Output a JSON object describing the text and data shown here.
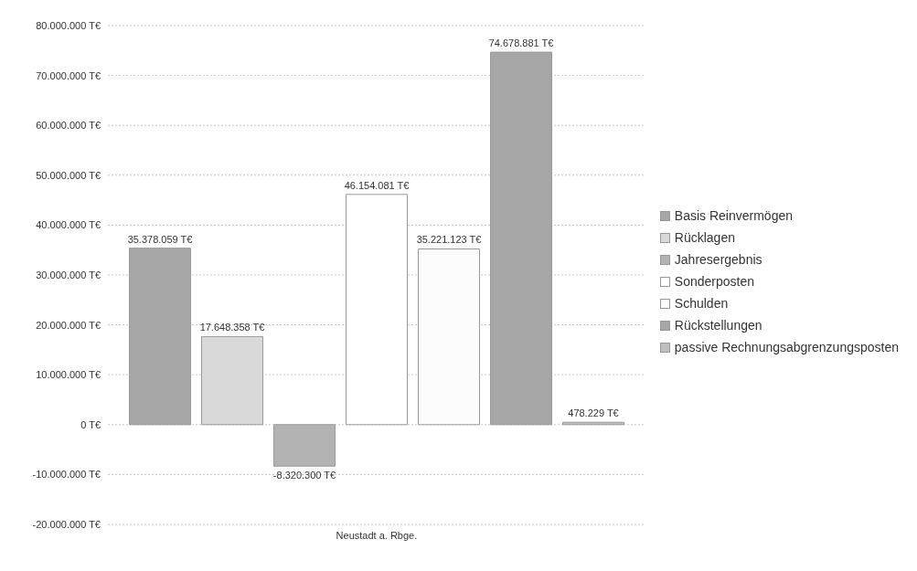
{
  "chart_data": {
    "type": "bar",
    "categories": [
      "Neustadt a. Rbge."
    ],
    "series": [
      {
        "name": "Basis  Reinvermögen",
        "color": "#a6a6a6",
        "values": [
          35378059
        ],
        "value_labels": [
          "35.378.059 T€"
        ]
      },
      {
        "name": "Rücklagen",
        "color": "#d9d9d9",
        "values": [
          17648358
        ],
        "value_labels": [
          "17.648.358 T€"
        ]
      },
      {
        "name": "Jahresergebnis",
        "color": "#b3b3b3",
        "values": [
          -8320300
        ],
        "value_labels": [
          "-8.320.300 T€"
        ]
      },
      {
        "name": "Sonderposten",
        "color": "#ffffff",
        "values": [
          46154081
        ],
        "value_labels": [
          "46.154.081 T€"
        ]
      },
      {
        "name": "Schulden",
        "color": "#fcfcfc",
        "values": [
          35221123
        ],
        "value_labels": [
          "35.221.123 T€"
        ]
      },
      {
        "name": "Rückstellungen",
        "color": "#a6a6a6",
        "values": [
          74678881
        ],
        "value_labels": [
          "74.678.881 T€"
        ]
      },
      {
        "name": "passive Rechnungsabgrenzungsposten",
        "color": "#bfbfbf",
        "values": [
          478229
        ],
        "value_labels": [
          "478.229 T€"
        ]
      }
    ],
    "ylim": [
      -20000000,
      80000000
    ],
    "yticks": [
      {
        "value": -20000000,
        "label": "-20.000.000 T€"
      },
      {
        "value": -10000000,
        "label": "-10.000.000 T€"
      },
      {
        "value": 0,
        "label": "0 T€"
      },
      {
        "value": 10000000,
        "label": "10.000.000 T€"
      },
      {
        "value": 20000000,
        "label": "20.000.000 T€"
      },
      {
        "value": 30000000,
        "label": "30.000.000 T€"
      },
      {
        "value": 40000000,
        "label": "40.000.000 T€"
      },
      {
        "value": 50000000,
        "label": "50.000.000 T€"
      },
      {
        "value": 60000000,
        "label": "60.000.000 T€"
      },
      {
        "value": 70000000,
        "label": "70.000.000 T€"
      },
      {
        "value": 80000000,
        "label": "80.000.000 T€"
      }
    ],
    "grid": "y",
    "legend": "right"
  }
}
